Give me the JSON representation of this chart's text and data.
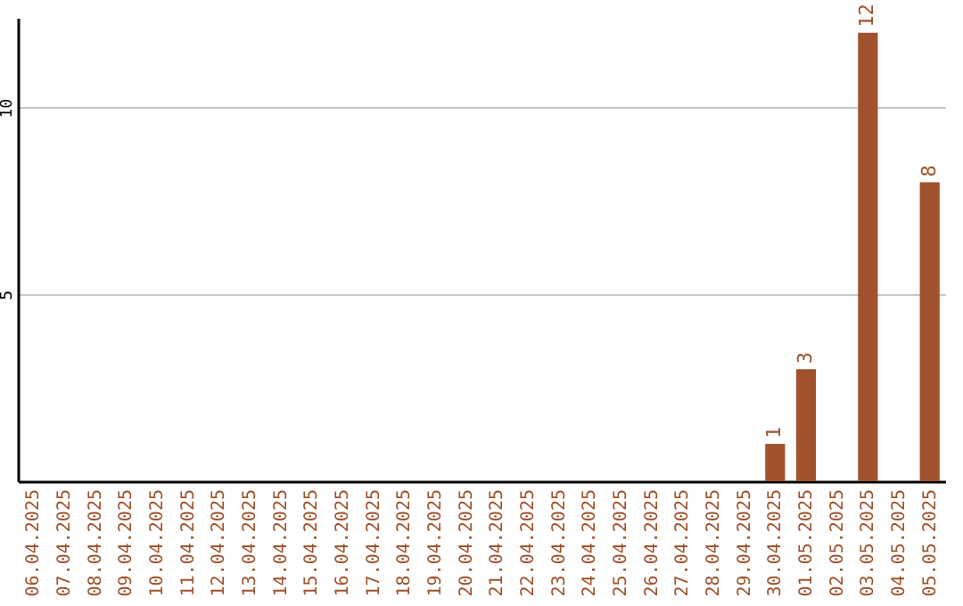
{
  "chart_data": {
    "type": "bar",
    "categories": [
      "06.04.2025",
      "07.04.2025",
      "08.04.2025",
      "09.04.2025",
      "10.04.2025",
      "11.04.2025",
      "12.04.2025",
      "13.04.2025",
      "14.04.2025",
      "15.04.2025",
      "16.04.2025",
      "17.04.2025",
      "18.04.2025",
      "19.04.2025",
      "20.04.2025",
      "21.04.2025",
      "22.04.2025",
      "23.04.2025",
      "24.04.2025",
      "25.04.2025",
      "26.04.2025",
      "27.04.2025",
      "28.04.2025",
      "29.04.2025",
      "30.04.2025",
      "01.05.2025",
      "02.05.2025",
      "03.05.2025",
      "04.05.2025",
      "05.05.2025"
    ],
    "values": [
      0,
      0,
      0,
      0,
      0,
      0,
      0,
      0,
      0,
      0,
      0,
      0,
      0,
      0,
      0,
      0,
      0,
      0,
      0,
      0,
      0,
      0,
      0,
      0,
      1,
      3,
      0,
      12,
      0,
      8
    ],
    "value_labels": [
      null,
      null,
      null,
      null,
      null,
      null,
      null,
      null,
      null,
      null,
      null,
      null,
      null,
      null,
      null,
      null,
      null,
      null,
      null,
      null,
      null,
      null,
      null,
      null,
      "1",
      "3",
      null,
      "12",
      null,
      "8"
    ],
    "color": "#a0522d",
    "ylim": [
      0,
      12.4
    ],
    "yticks": [
      5,
      10
    ],
    "grid": "y"
  }
}
